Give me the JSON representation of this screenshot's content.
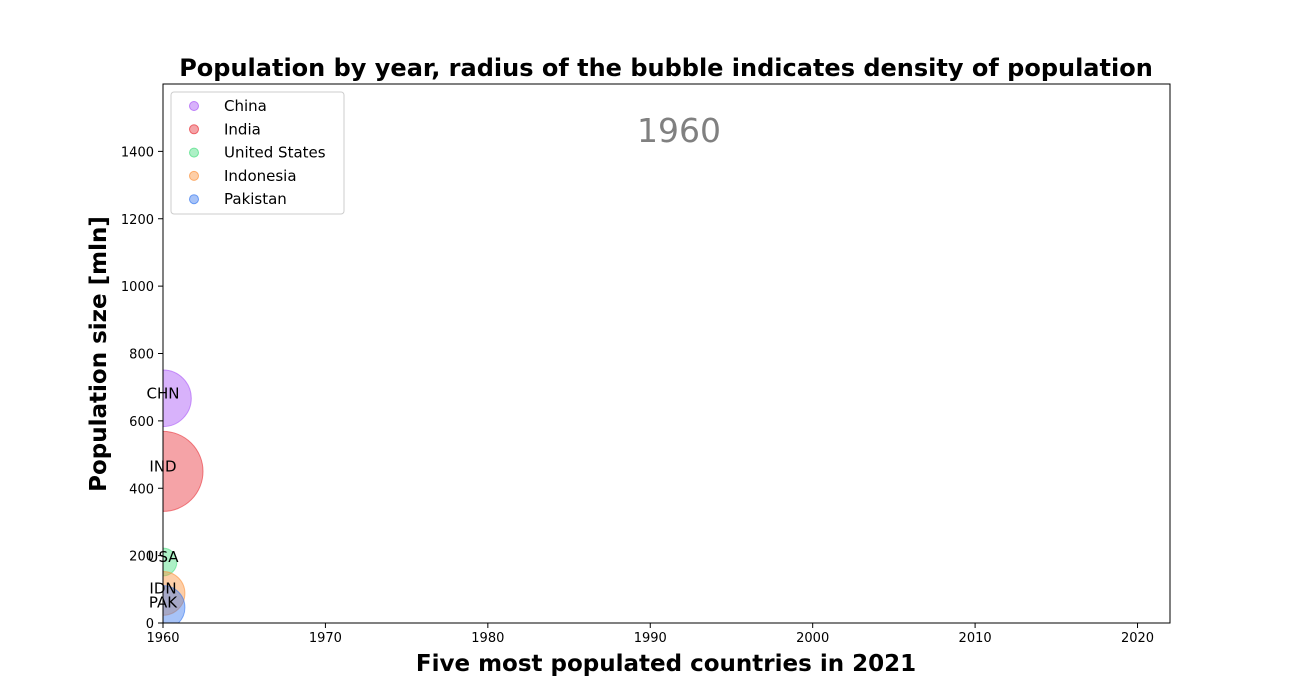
{
  "chart_data": {
    "type": "scatter",
    "title": "Population by year, radius of the bubble indicates density of population",
    "xlabel": "Five most populated countries in 2021",
    "ylabel": "Population size [mln]",
    "xlim": [
      1960,
      2022
    ],
    "ylim": [
      0,
      1600
    ],
    "xticks": [
      1960,
      1970,
      1980,
      1990,
      2000,
      2010,
      2020
    ],
    "yticks": [
      0,
      200,
      400,
      600,
      800,
      1000,
      1200,
      1400
    ],
    "grid": false,
    "legend_placement": "upper-left",
    "year_annotation": "1960",
    "series": [
      {
        "name": "China",
        "code": "CHN",
        "color": "#a855f7",
        "x": 1960,
        "y": 667,
        "relative_size": 0.5
      },
      {
        "name": "India",
        "code": "IND",
        "color": "#e8333b",
        "x": 1960,
        "y": 450,
        "relative_size": 1.0
      },
      {
        "name": "United States",
        "code": "USA",
        "color": "#4ade80",
        "x": 1960,
        "y": 181,
        "relative_size": 0.12
      },
      {
        "name": "Indonesia",
        "code": "IDN",
        "color": "#fb923c",
        "x": 1960,
        "y": 88,
        "relative_size": 0.3
      },
      {
        "name": "Pakistan",
        "code": "PAK",
        "color": "#3b7bf0",
        "x": 1960,
        "y": 46,
        "relative_size": 0.3
      }
    ]
  }
}
